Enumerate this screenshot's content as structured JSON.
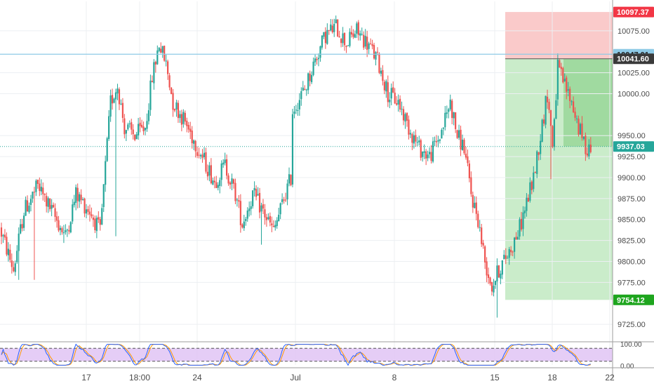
{
  "colors": {
    "up": "#26a69a",
    "down": "#ef5350",
    "grid": "#eceff2",
    "axis_text": "#4a4a4a",
    "resistance_line": "#8ecae6",
    "current_price_line": "#26a69a",
    "stop_zone": "#f8b4b4",
    "target_zone": "#9fdc9f",
    "entry_zone_dark": "#6cc56c",
    "stoch_band": "#e1c4f5",
    "stoch_k": "#2962ff",
    "stoch_d": "#ff9800"
  },
  "price_labels": {
    "stop": "10097.37",
    "resistance": "10047.01",
    "entry": "10041.60",
    "current": "9937.03",
    "target": "9754.12"
  },
  "chart_data": {
    "type": "candlestick",
    "y_ticks": [
      "10075.00",
      "10025.00",
      "10000.00",
      "9950.00",
      "9925.00",
      "9900.00",
      "9875.00",
      "9850.00",
      "9825.00",
      "9800.00",
      "9775.00",
      "9725.00"
    ],
    "x_ticks": [
      "17",
      "18:00",
      "24",
      "Jul",
      "8",
      "15",
      "18",
      "22"
    ],
    "ylim": [
      9705,
      10110
    ],
    "levels": {
      "stop": 10097.37,
      "resistance": 10047.01,
      "entry": 10041.6,
      "current": 9937.03,
      "target": 9754.12
    },
    "anchors": [
      [
        0,
        9840
      ],
      [
        8,
        9790
      ],
      [
        14,
        9860
      ],
      [
        22,
        9890
      ],
      [
        30,
        9860
      ],
      [
        38,
        9830
      ],
      [
        44,
        9880
      ],
      [
        52,
        9860
      ],
      [
        58,
        9835
      ],
      [
        64,
        9990
      ],
      [
        68,
        10010
      ],
      [
        72,
        9960
      ],
      [
        78,
        9950
      ],
      [
        84,
        9960
      ],
      [
        88,
        10020
      ],
      [
        92,
        10060
      ],
      [
        96,
        10035
      ],
      [
        100,
        9990
      ],
      [
        106,
        9970
      ],
      [
        112,
        9945
      ],
      [
        118,
        9920
      ],
      [
        124,
        9895
      ],
      [
        130,
        9915
      ],
      [
        136,
        9880
      ],
      [
        140,
        9845
      ],
      [
        146,
        9880
      ],
      [
        152,
        9860
      ],
      [
        158,
        9835
      ],
      [
        164,
        9875
      ],
      [
        168,
        9900
      ],
      [
        169,
        9980
      ],
      [
        176,
        10005
      ],
      [
        182,
        10040
      ],
      [
        188,
        10070
      ],
      [
        194,
        10080
      ],
      [
        200,
        10060
      ],
      [
        206,
        10075
      ],
      [
        212,
        10060
      ],
      [
        218,
        10040
      ],
      [
        224,
        10000
      ],
      [
        230,
        9990
      ],
      [
        236,
        9960
      ],
      [
        242,
        9935
      ],
      [
        248,
        9925
      ],
      [
        254,
        9950
      ],
      [
        260,
        9990
      ],
      [
        264,
        9950
      ],
      [
        268,
        9935
      ],
      [
        272,
        9880
      ],
      [
        276,
        9850
      ],
      [
        280,
        9800
      ],
      [
        284,
        9770
      ],
      [
        288,
        9790
      ],
      [
        292,
        9805
      ],
      [
        296,
        9820
      ],
      [
        300,
        9840
      ],
      [
        304,
        9870
      ],
      [
        308,
        9900
      ],
      [
        312,
        9950
      ],
      [
        316,
        10000
      ],
      [
        319,
        9940
      ],
      [
        322,
        10030
      ],
      [
        326,
        10010
      ],
      [
        330,
        9990
      ],
      [
        334,
        9960
      ],
      [
        338,
        9935
      ],
      [
        340,
        9937
      ]
    ],
    "spikes": [
      {
        "i": 10,
        "low": 9778
      },
      {
        "i": 19,
        "low": 9778
      },
      {
        "i": 36,
        "low": 9822
      },
      {
        "i": 66,
        "low": 9830
      },
      {
        "i": 89,
        "low": 10025
      },
      {
        "i": 150,
        "low": 9820
      },
      {
        "i": 286,
        "low": 9733
      },
      {
        "i": 317,
        "low": 9898
      },
      {
        "i": 321,
        "high": 10048
      },
      {
        "i": 338,
        "low": 9924
      }
    ],
    "series": [
      {
        "values": []
      }
    ],
    "indicator": {
      "ticks": [
        "100.00",
        "0.00"
      ],
      "band": [
        20,
        80
      ],
      "ylim": [
        0,
        100
      ]
    }
  }
}
